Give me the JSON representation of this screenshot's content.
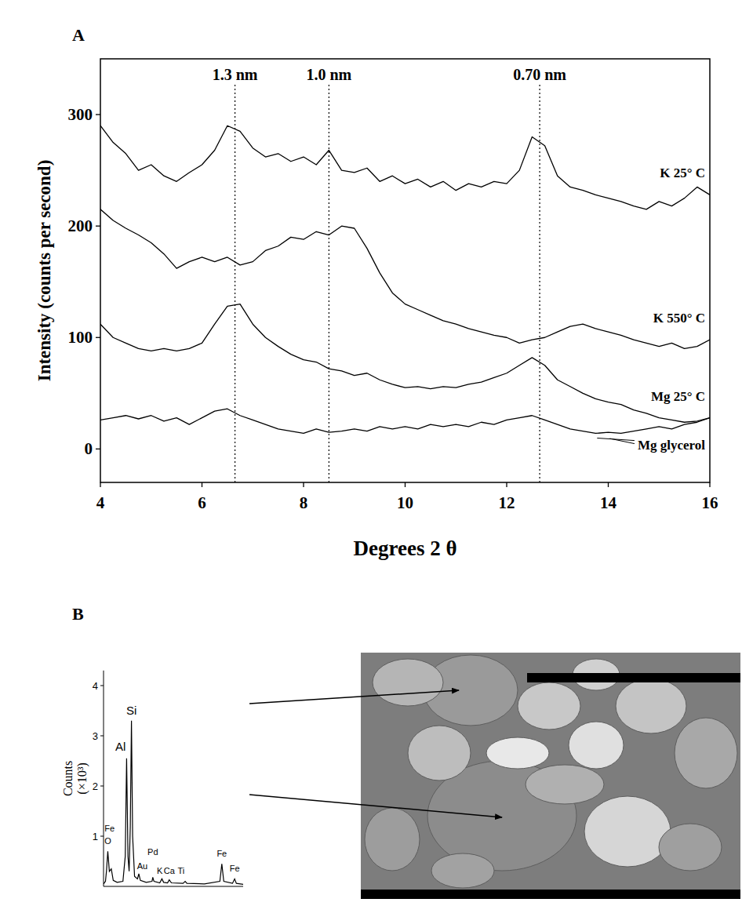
{
  "chart_data": [
    {
      "panel": "A",
      "type": "line",
      "x_label": "Degrees 2 θ",
      "y_label": "Intensity (counts per second)",
      "x": [
        4,
        4.25,
        4.5,
        4.75,
        5,
        5.25,
        5.5,
        5.75,
        6,
        6.25,
        6.5,
        6.75,
        7,
        7.25,
        7.5,
        7.75,
        8,
        8.25,
        8.5,
        8.75,
        9,
        9.25,
        9.5,
        9.75,
        10,
        10.25,
        10.5,
        10.75,
        11,
        11.25,
        11.5,
        11.75,
        12,
        12.25,
        12.5,
        12.75,
        13,
        13.25,
        13.5,
        13.75,
        14,
        14.25,
        14.5,
        14.75,
        15,
        15.25,
        15.5,
        15.75,
        16
      ],
      "series": [
        {
          "name": "K 25° C",
          "color": "#000000",
          "values": [
            290,
            275,
            265,
            250,
            255,
            245,
            240,
            248,
            255,
            268,
            290,
            285,
            270,
            262,
            265,
            258,
            262,
            255,
            268,
            250,
            248,
            252,
            240,
            245,
            238,
            242,
            235,
            240,
            232,
            238,
            235,
            240,
            238,
            250,
            280,
            272,
            245,
            235,
            232,
            228,
            225,
            222,
            218,
            215,
            222,
            218,
            225,
            235,
            228
          ]
        },
        {
          "name": "K 550° C",
          "color": "#000000",
          "values": [
            215,
            205,
            198,
            192,
            185,
            175,
            162,
            168,
            172,
            168,
            172,
            165,
            168,
            178,
            182,
            190,
            188,
            195,
            192,
            200,
            198,
            180,
            158,
            140,
            130,
            125,
            120,
            115,
            112,
            108,
            105,
            102,
            100,
            95,
            98,
            100,
            105,
            110,
            112,
            108,
            105,
            102,
            98,
            95,
            92,
            95,
            90,
            92,
            98
          ]
        },
        {
          "name": "Mg 25° C",
          "color": "#000000",
          "values": [
            112,
            100,
            95,
            90,
            88,
            90,
            88,
            90,
            95,
            112,
            128,
            130,
            112,
            100,
            92,
            85,
            80,
            78,
            72,
            70,
            66,
            68,
            62,
            58,
            55,
            56,
            54,
            56,
            55,
            58,
            60,
            64,
            68,
            75,
            82,
            75,
            62,
            56,
            50,
            45,
            42,
            40,
            35,
            32,
            28,
            26,
            24,
            25,
            28
          ]
        },
        {
          "name": "Mg glycerol",
          "color": "#000000",
          "values": [
            26,
            28,
            30,
            27,
            30,
            25,
            28,
            22,
            28,
            34,
            36,
            30,
            26,
            22,
            18,
            16,
            14,
            18,
            15,
            16,
            18,
            16,
            20,
            18,
            20,
            18,
            22,
            20,
            22,
            20,
            24,
            22,
            26,
            28,
            30,
            26,
            22,
            18,
            16,
            14,
            15,
            14,
            16,
            18,
            20,
            18,
            22,
            24,
            28
          ]
        }
      ],
      "xlim": [
        4,
        16
      ],
      "xticks": [
        4,
        6,
        8,
        10,
        12,
        14,
        16
      ],
      "ylim": [
        -30,
        350
      ],
      "yticks": [
        0,
        100,
        200,
        300
      ],
      "annotations": [
        {
          "text": "1.3 nm",
          "x": 6.65
        },
        {
          "text": "1.0 nm",
          "x": 8.5
        },
        {
          "text": "0.70 nm",
          "x": 12.65
        }
      ]
    },
    {
      "panel": "B",
      "type": "line",
      "y_label": "Counts (×10³)",
      "x": [
        0.3,
        0.4,
        0.45,
        0.52,
        0.6,
        0.7,
        0.8,
        1.0,
        1.3,
        1.42,
        1.49,
        1.56,
        1.62,
        1.68,
        1.74,
        1.8,
        1.9,
        2.05,
        2.12,
        2.2,
        2.5,
        2.8,
        2.84,
        2.9,
        3.2,
        3.31,
        3.4,
        3.6,
        3.69,
        3.8,
        4.4,
        4.51,
        4.6,
        5.5,
        6.3,
        6.4,
        6.5,
        6.95,
        7.06,
        7.15,
        7.5
      ],
      "values": [
        0.05,
        0.1,
        0.3,
        0.7,
        0.3,
        0.35,
        0.12,
        0.08,
        0.1,
        0.6,
        2.55,
        0.6,
        0.3,
        1.2,
        3.3,
        1.0,
        0.2,
        0.15,
        0.25,
        0.12,
        0.08,
        0.1,
        0.18,
        0.1,
        0.07,
        0.15,
        0.08,
        0.07,
        0.13,
        0.07,
        0.06,
        0.1,
        0.06,
        0.05,
        0.1,
        0.45,
        0.1,
        0.06,
        0.15,
        0.06,
        0.04
      ],
      "color": "#000000",
      "xlim": [
        0.3,
        7.5
      ],
      "ylim": [
        0,
        4.3
      ],
      "yticks": [
        1,
        2,
        3,
        4
      ],
      "tick_labels": "y",
      "annotations": [
        {
          "text": "Si",
          "x": 1.74,
          "y": 3.42
        },
        {
          "text": "Al",
          "x": 1.45,
          "y": 2.7
        },
        {
          "text": "Fe",
          "x": 0.35,
          "y": 1.1
        },
        {
          "text": "O",
          "x": 0.35,
          "y": 0.85
        },
        {
          "text": "Pd",
          "x": 2.84,
          "y": 0.62
        },
        {
          "text": "Au",
          "x": 2.3,
          "y": 0.35
        },
        {
          "text": "K",
          "x": 3.2,
          "y": 0.25
        },
        {
          "text": "Ca",
          "x": 3.69,
          "y": 0.25
        },
        {
          "text": "Ti",
          "x": 4.3,
          "y": 0.25
        },
        {
          "text": "Fe",
          "x": 6.4,
          "y": 0.6
        },
        {
          "text": "Fe",
          "x": 7.06,
          "y": 0.3
        }
      ]
    }
  ]
}
